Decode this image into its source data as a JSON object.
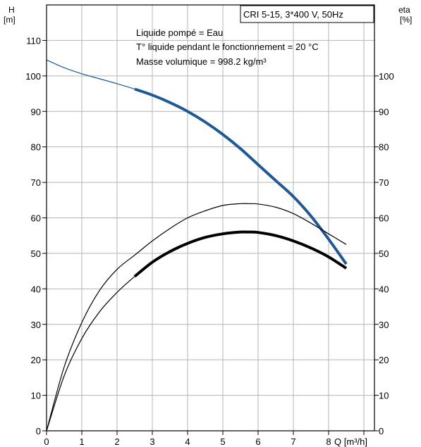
{
  "chart_data": {
    "type": "line",
    "title_box": "CRI 5-15, 3*400 V, 50Hz",
    "annotations": [
      "Liquide pompé = Eau",
      "T° liquide pendant le fonctionnement = 20 °C",
      "Masse volumique = 998.2 kg/m³"
    ],
    "left_axis": {
      "label": "H",
      "unit": "[m]",
      "range": [
        0,
        120
      ],
      "ticks": [
        "0",
        "10",
        "20",
        "30",
        "40",
        "50",
        "60",
        "70",
        "80",
        "90",
        "100",
        "110"
      ]
    },
    "right_axis": {
      "label": "eta",
      "unit": "[%]",
      "range": [
        0,
        120
      ],
      "ticks": [
        "0",
        "10",
        "20",
        "30",
        "40",
        "50",
        "60",
        "70",
        "80",
        "90",
        "100"
      ]
    },
    "x_axis": {
      "label": "Q [m³/h]",
      "range": [
        0,
        9.3
      ],
      "ticks": [
        "0",
        "1",
        "2",
        "3",
        "4",
        "5",
        "6",
        "7",
        "8"
      ]
    },
    "grid": true,
    "series": [
      {
        "color": "#1f5a96",
        "axis": "left",
        "x": [
          0,
          0.5,
          1.0,
          1.5,
          2.0,
          2.5,
          3.0,
          3.5,
          4.0,
          4.5,
          5.0,
          5.5,
          6.0,
          6.5,
          7.0,
          7.5,
          8.0,
          8.5
        ],
        "y": [
          104.5,
          102.3,
          100.6,
          99.2,
          97.8,
          96.3,
          94.6,
          92.5,
          90.0,
          87.0,
          83.5,
          79.5,
          75.0,
          70.5,
          66.0,
          60.5,
          54.0,
          47.0
        ],
        "bold_from": 2.5
      },
      {
        "color": "#000000",
        "axis": "right",
        "x": [
          0,
          0.5,
          1.0,
          1.5,
          2.0,
          2.5,
          3.0,
          3.5,
          4.0,
          4.5,
          5.0,
          5.5,
          5.75,
          6.0,
          6.5,
          7.0,
          7.5,
          8.0,
          8.5
        ],
        "y": [
          0,
          18.0,
          30.5,
          39.5,
          45.5,
          49.5,
          53.5,
          57.0,
          60.0,
          62.0,
          63.5,
          64.0,
          64.0,
          63.9,
          63.0,
          61.2,
          58.5,
          55.5,
          52.5
        ],
        "bold_from": null
      },
      {
        "color": "#000000",
        "axis": "right",
        "x": [
          0,
          0.5,
          1.0,
          1.5,
          2.0,
          2.5,
          3.0,
          3.5,
          4.0,
          4.5,
          5.0,
          5.5,
          5.75,
          6.0,
          6.5,
          7.0,
          7.5,
          8.0,
          8.5
        ],
        "y": [
          0,
          15.5,
          26.0,
          33.5,
          39.0,
          43.5,
          47.5,
          50.5,
          52.8,
          54.5,
          55.5,
          56.0,
          56.0,
          55.9,
          55.0,
          53.5,
          51.5,
          49.0,
          45.8
        ],
        "bold_from": 2.5
      }
    ]
  }
}
